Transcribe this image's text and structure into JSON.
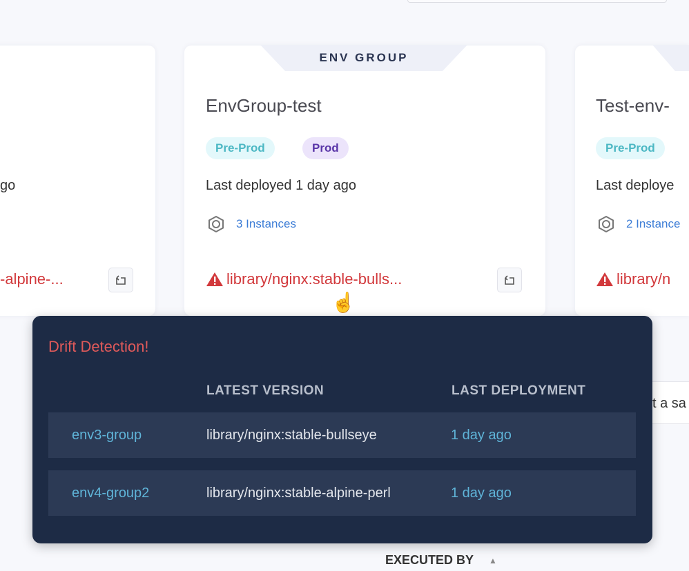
{
  "cards": [
    {
      "title": "",
      "last_deployed": "go",
      "artifact": "-alpine-..."
    },
    {
      "group_label": "ENV GROUP",
      "title": "EnvGroup-test",
      "badges": [
        "Pre-Prod",
        "Prod"
      ],
      "last_deployed": "Last deployed 1 day ago",
      "instances": "3 Instances",
      "artifact": "library/nginx:stable-bulls..."
    },
    {
      "title": "Test-env-",
      "badges": [
        "Pre-Prod"
      ],
      "last_deployed": "Last deploye",
      "instances": "2 Instance",
      "artifact": "library/n"
    }
  ],
  "behind_text": "t a sa",
  "popover": {
    "title": "Drift Detection!",
    "columns": [
      "",
      "LATEST VERSION",
      "LAST DEPLOYMENT"
    ],
    "rows": [
      {
        "env": "env3-group",
        "version": "library/nginx:stable-bullseye",
        "deployed": "1 day ago"
      },
      {
        "env": "env4-group2",
        "version": "library/nginx:stable-alpine-perl",
        "deployed": "1 day ago"
      }
    ]
  },
  "table_header": {
    "executed_by": "EXECUTED BY",
    "sort_icon": "triangle-up"
  },
  "colors": {
    "warning": "#d2393c",
    "popover_bg": "#1d2b45",
    "link": "#3d7dd6"
  }
}
